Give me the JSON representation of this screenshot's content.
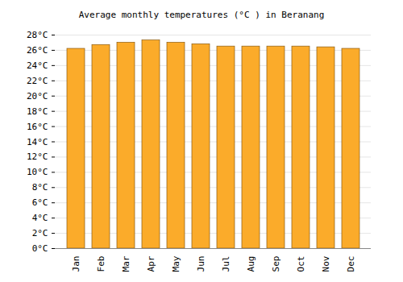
{
  "chart_data": {
    "type": "bar",
    "title": "Average monthly temperatures (°C ) in Beranang",
    "categories": [
      "Jan",
      "Feb",
      "Mar",
      "Apr",
      "May",
      "Jun",
      "Jul",
      "Aug",
      "Sep",
      "Oct",
      "Nov",
      "Dec"
    ],
    "values": [
      26.2,
      26.7,
      27.0,
      27.3,
      27.0,
      26.8,
      26.5,
      26.5,
      26.5,
      26.5,
      26.4,
      26.2
    ],
    "color": "#fbab2a",
    "ylim": [
      0,
      28
    ],
    "yticks": [
      {
        "value": 0,
        "label": "0°C"
      },
      {
        "value": 2,
        "label": "2°C"
      },
      {
        "value": 4,
        "label": "4°C"
      },
      {
        "value": 6,
        "label": "6°C"
      },
      {
        "value": 8,
        "label": "8°C"
      },
      {
        "value": 10,
        "label": "10°C"
      },
      {
        "value": 12,
        "label": "12°C"
      },
      {
        "value": 14,
        "label": "14°C"
      },
      {
        "value": 16,
        "label": "16°C"
      },
      {
        "value": 18,
        "label": "18°C"
      },
      {
        "value": 20,
        "label": "20°C"
      },
      {
        "value": 22,
        "label": "22°C"
      },
      {
        "value": 24,
        "label": "24°C"
      },
      {
        "value": 26,
        "label": "26°C"
      },
      {
        "value": 28,
        "label": "28°C"
      }
    ],
    "grid": true
  }
}
